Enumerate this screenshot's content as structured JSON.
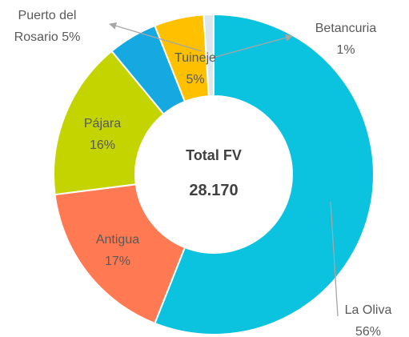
{
  "chart_data": {
    "type": "donut",
    "center_title": "Total FV",
    "center_value": "28.170",
    "categories": [
      "La Oliva",
      "Antigua",
      "Pájara",
      "Tuineje",
      "Puerto del Rosario",
      "Betancuria"
    ],
    "values": [
      56,
      17,
      16,
      5,
      5,
      1
    ],
    "value_labels": [
      "56%",
      "17%",
      "16%",
      "5%",
      "5%",
      "1%"
    ],
    "colors": [
      "#0bc2df",
      "#ff7a52",
      "#c4d400",
      "#16a9e1",
      "#ffc000",
      "#dbe7ea"
    ]
  }
}
